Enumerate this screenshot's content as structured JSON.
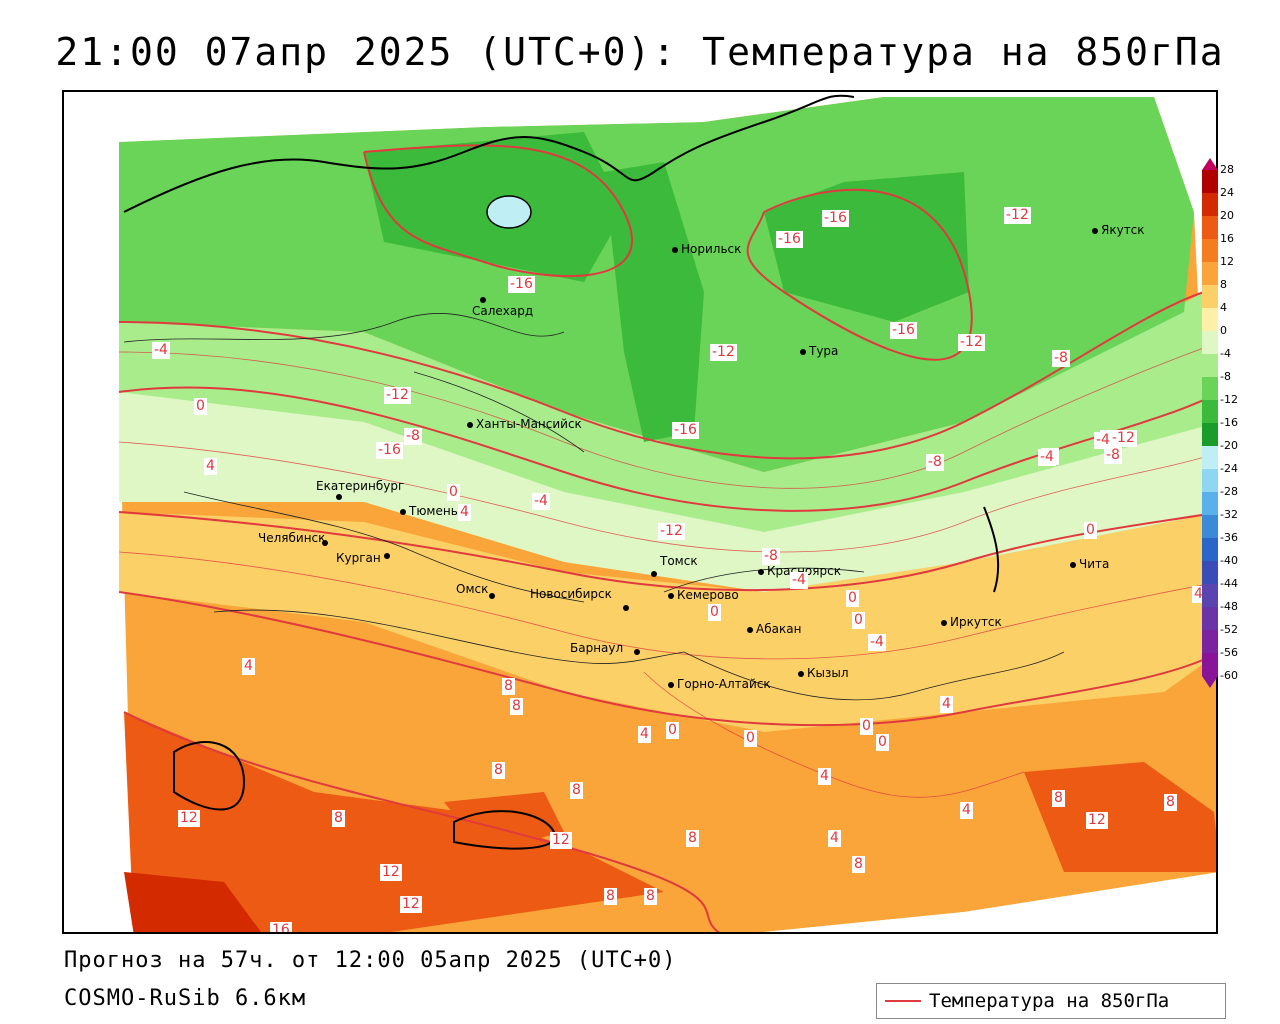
{
  "title": "21:00 07апр 2025 (UTC+0): Температура на 850гПа",
  "footer": {
    "forecast": "Прогноз на 57ч. от 12:00 05апр 2025 (UTC+0)",
    "model": "COSMO-RuSib 6.6км"
  },
  "legend": {
    "label": "Температура на 850гПа",
    "color": "#e0393e"
  },
  "scale": {
    "ticks": [
      "28",
      "24",
      "20",
      "16",
      "12",
      "8",
      "4",
      "0",
      "-4",
      "-8",
      "-12",
      "-16",
      "-20",
      "-24",
      "-28",
      "-32",
      "-36",
      "-40",
      "-44",
      "-48",
      "-52",
      "-56",
      "-60"
    ],
    "colors": [
      "#c0005a",
      "#b00000",
      "#d42a00",
      "#ec5a14",
      "#f57d20",
      "#f9a53a",
      "#fbd067",
      "#fdf0a8",
      "#dff7c4",
      "#a8ec8c",
      "#6ad458",
      "#3cba3c",
      "#1a9c2a",
      "#bfeff5",
      "#8fd6f0",
      "#5ab0e8",
      "#3a8ad8",
      "#2a66c8",
      "#3a4cb8",
      "#5a44b0",
      "#6a34a8",
      "#7a24a0",
      "#8a1498"
    ]
  },
  "cities": [
    {
      "name": "Норильск"
    },
    {
      "name": "Якутск"
    },
    {
      "name": "Салехард"
    },
    {
      "name": "Тура"
    },
    {
      "name": "Ханты-Мансийск"
    },
    {
      "name": "Екатеринбург"
    },
    {
      "name": "Тюмень"
    },
    {
      "name": "Челябинск"
    },
    {
      "name": "Курган"
    },
    {
      "name": "Омск"
    },
    {
      "name": "Новосибирск"
    },
    {
      "name": "Томск"
    },
    {
      "name": "Красноярск"
    },
    {
      "name": "Кемерово"
    },
    {
      "name": "Абакан"
    },
    {
      "name": "Иркутск"
    },
    {
      "name": "Чита"
    },
    {
      "name": "Барнаул"
    },
    {
      "name": "Горно-Алтайск"
    },
    {
      "name": "Кызыл"
    }
  ],
  "contour_labels": [
    "-16",
    "-16",
    "-16",
    "-12",
    "-16",
    "-12",
    "-16",
    "-12",
    "-8",
    "-12",
    "-4",
    "-8",
    "-4",
    "-8",
    "0",
    "4",
    "-12",
    "-4",
    "0",
    "-8",
    "-4",
    "4",
    "-8",
    "0",
    "-16",
    "0",
    "4",
    "0",
    "-4",
    "-12",
    "4",
    "0",
    "0",
    "-8",
    "-4",
    "-4",
    "4",
    "8",
    "8",
    "8",
    "0",
    "8",
    "4",
    "0",
    "0",
    "4",
    "8",
    "4",
    "8",
    "12",
    "8",
    "12",
    "12",
    "12",
    "8",
    "8",
    "4",
    "8",
    "8",
    "12",
    "16",
    "4"
  ]
}
